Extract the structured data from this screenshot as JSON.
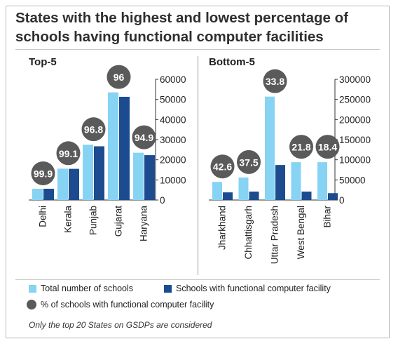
{
  "title": "States with the highest and lowest percentage of schools having functional computer facilities",
  "colors": {
    "total": "#87d3f3",
    "functional": "#1c4c8f",
    "bubble": "#5a5a5a",
    "bubble_text": "#ffffff"
  },
  "legend": {
    "total": "Total  number of schools",
    "functional": "Schools with functional computer facility",
    "percent": "% of schools with functional computer facility"
  },
  "footnote": "Only the top 20 States on GSDPs are considered",
  "chart_data": [
    {
      "type": "bar",
      "title": "Top-5",
      "categories": [
        "Delhi",
        "Kerala",
        "Punjab",
        "Gujarat",
        "Haryana"
      ],
      "series": [
        {
          "name": "Total  number of schools",
          "values": [
            5600,
            15600,
            27500,
            53500,
            23500
          ]
        },
        {
          "name": "Schools with functional computer facility",
          "values": [
            5600,
            15500,
            26700,
            51300,
            22300
          ]
        }
      ],
      "percent": [
        "99.9",
        "99.1",
        "96.8",
        "96",
        "94.9"
      ],
      "ylim": [
        0,
        60000
      ],
      "yticks": [
        "0",
        "10000",
        "20000",
        "30000",
        "40000",
        "50000",
        "60000"
      ],
      "y_axis_side": "right"
    },
    {
      "type": "bar",
      "title": "Bottom-5",
      "categories": [
        "Jharkhand",
        "Chhattisgarh",
        "Uttar Pradesh",
        "West Bengal",
        "Bihar"
      ],
      "series": [
        {
          "name": "Total  number of schools",
          "values": [
            45000,
            56000,
            257000,
            94000,
            94000
          ]
        },
        {
          "name": "Schools with functional computer facility",
          "values": [
            19000,
            21000,
            87000,
            21000,
            17000
          ]
        }
      ],
      "percent": [
        "42.6",
        "37.5",
        "33.8",
        "21.8",
        "18.4"
      ],
      "ylim": [
        0,
        300000
      ],
      "yticks": [
        "0",
        "50000",
        "100000",
        "150000",
        "200000",
        "250000",
        "300000"
      ],
      "y_axis_side": "right"
    }
  ]
}
